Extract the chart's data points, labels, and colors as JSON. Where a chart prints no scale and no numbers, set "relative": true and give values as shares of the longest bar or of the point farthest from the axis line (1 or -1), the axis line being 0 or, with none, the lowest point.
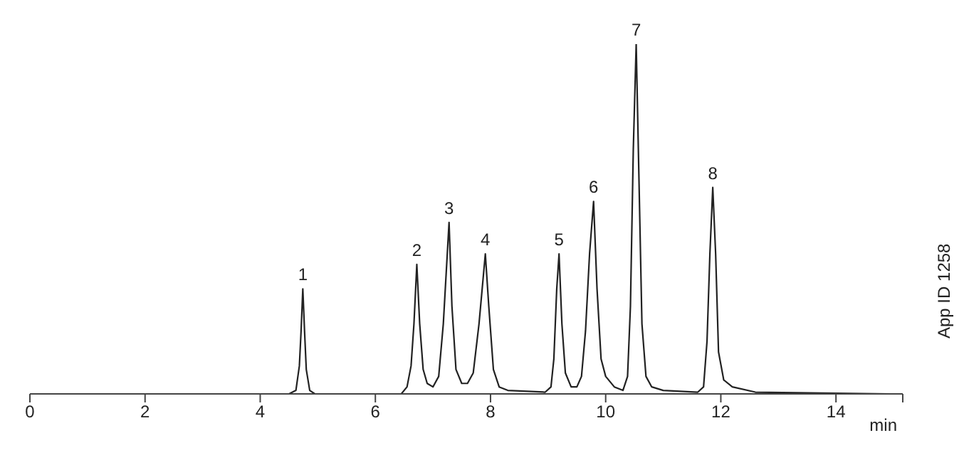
{
  "chart_data": {
    "type": "line",
    "relative": true,
    "xlabel": "min",
    "xlim": [
      0,
      15.16
    ],
    "xticks": [
      0,
      2,
      4,
      6,
      8,
      10,
      12,
      14,
      {
        "value": 15.16,
        "label": null
      }
    ],
    "grid": false,
    "legend": false,
    "marker": "none",
    "line_style": "solid",
    "series": [
      {
        "color": "#222222",
        "x": [
          0,
          4.5,
          4.62,
          4.68,
          4.71,
          4.74,
          4.77,
          4.8,
          4.86,
          4.95,
          6.45,
          6.55,
          6.62,
          6.67,
          6.72,
          6.77,
          6.83,
          6.9,
          7.0,
          7.1,
          7.18,
          7.28,
          7.33,
          7.4,
          7.5,
          7.6,
          7.7,
          7.8,
          7.91,
          7.97,
          8.05,
          8.15,
          8.3,
          8.95,
          9.05,
          9.1,
          9.15,
          9.19,
          9.24,
          9.3,
          9.4,
          9.5,
          9.58,
          9.65,
          9.72,
          9.79,
          9.85,
          9.92,
          10.0,
          10.15,
          10.3,
          10.38,
          10.43,
          10.48,
          10.53,
          10.58,
          10.63,
          10.7,
          10.8,
          11.0,
          11.6,
          11.7,
          11.76,
          11.81,
          11.86,
          11.91,
          11.96,
          12.05,
          12.2,
          12.6,
          14.95
        ],
        "values": [
          0,
          0,
          0.01,
          0.08,
          0.18,
          0.3,
          0.18,
          0.07,
          0.01,
          0,
          0,
          0.02,
          0.08,
          0.2,
          0.37,
          0.2,
          0.07,
          0.03,
          0.02,
          0.05,
          0.2,
          0.49,
          0.25,
          0.07,
          0.03,
          0.03,
          0.06,
          0.2,
          0.4,
          0.25,
          0.07,
          0.02,
          0.01,
          0.005,
          0.02,
          0.1,
          0.3,
          0.4,
          0.2,
          0.06,
          0.02,
          0.02,
          0.05,
          0.18,
          0.4,
          0.55,
          0.3,
          0.1,
          0.05,
          0.02,
          0.01,
          0.05,
          0.25,
          0.7,
          1,
          0.6,
          0.2,
          0.05,
          0.02,
          0.01,
          0.005,
          0.02,
          0.15,
          0.4,
          0.59,
          0.4,
          0.12,
          0.04,
          0.02,
          0.005,
          0
        ]
      }
    ],
    "annotations": [
      {
        "text": "1",
        "x": 4.74,
        "y": 0.3
      },
      {
        "text": "2",
        "x": 6.72,
        "y": 0.37
      },
      {
        "text": "3",
        "x": 7.28,
        "y": 0.49
      },
      {
        "text": "4",
        "x": 7.91,
        "y": 0.4
      },
      {
        "text": "5",
        "x": 9.19,
        "y": 0.4
      },
      {
        "text": "6",
        "x": 9.79,
        "y": 0.55
      },
      {
        "text": "7",
        "x": 10.53,
        "y": 1
      },
      {
        "text": "8",
        "x": 11.86,
        "y": 0.59
      },
      "App ID 1258"
    ]
  }
}
